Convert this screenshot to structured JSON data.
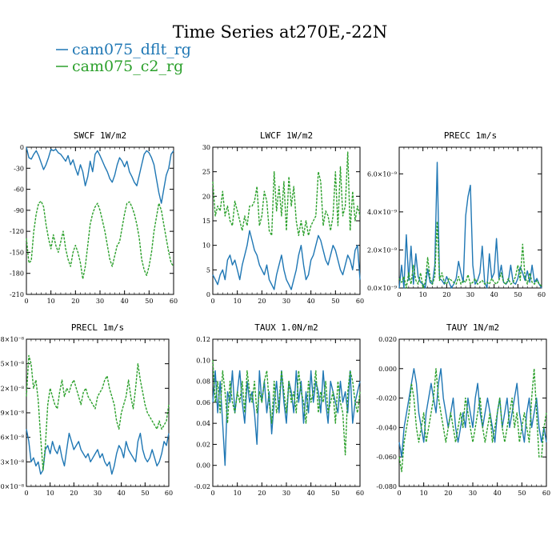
{
  "figure": {
    "title": "Time Series at270E,-22N",
    "legend": [
      {
        "name": "cam075_dflt_rg",
        "color": "#1f77b4"
      },
      {
        "name": "cam075_c2_rg",
        "color": "#2ca02c"
      }
    ]
  },
  "chart_data": [
    {
      "type": "line",
      "title": "SWCF   1W/m2",
      "xlim": [
        0,
        60
      ],
      "ylim": [
        -210,
        0
      ],
      "xticks": [
        "0",
        "10",
        "20",
        "30",
        "40",
        "50",
        "60"
      ],
      "yticks": [
        "0",
        "-30",
        "-60",
        "-90",
        "-120",
        "-150",
        "-180",
        "-210"
      ],
      "series": [
        {
          "name": "cam075_dflt_rg",
          "color": "#1f77b4",
          "dashed": false,
          "values": [
            0,
            -15,
            -17,
            -10,
            -5,
            -12,
            -22,
            -32,
            -25,
            -15,
            -3,
            -5,
            -3,
            -8,
            -10,
            -15,
            -20,
            -12,
            -25,
            -18,
            -30,
            -40,
            -25,
            -35,
            -55,
            -42,
            -20,
            -35,
            -10,
            -5,
            -12,
            -20,
            -28,
            -35,
            -45,
            -50,
            -40,
            -25,
            -15,
            -20,
            -28,
            -20,
            -35,
            -42,
            -50,
            -55,
            -40,
            -25,
            -10,
            -5,
            -8,
            -15,
            -25,
            -45,
            -65,
            -80,
            -60,
            -40,
            -30,
            -10,
            -5
          ]
        },
        {
          "name": "cam075_c2_rg",
          "color": "#2ca02c",
          "dashed": true,
          "values": [
            -130,
            -165,
            -162,
            -120,
            -95,
            -80,
            -77,
            -85,
            -110,
            -130,
            -145,
            -125,
            -140,
            -150,
            -135,
            -120,
            -145,
            -160,
            -170,
            -150,
            -140,
            -150,
            -165,
            -188,
            -170,
            -140,
            -110,
            -95,
            -85,
            -80,
            -90,
            -105,
            -120,
            -140,
            -160,
            -170,
            -155,
            -140,
            -135,
            -115,
            -95,
            -80,
            -78,
            -85,
            -95,
            -110,
            -130,
            -160,
            -175,
            -183,
            -170,
            -150,
            -120,
            -100,
            -80,
            -90,
            -110,
            -130,
            -150,
            -165,
            -170
          ]
        }
      ]
    },
    {
      "type": "line",
      "title": "LWCF   1W/m2",
      "xlim": [
        0,
        60
      ],
      "ylim": [
        0,
        30
      ],
      "xticks": [
        "0",
        "10",
        "20",
        "30",
        "40",
        "50",
        "60"
      ],
      "yticks": [
        "0",
        "5",
        "10",
        "15",
        "20",
        "25",
        "30"
      ],
      "series": [
        {
          "name": "cam075_dflt_rg",
          "color": "#1f77b4",
          "dashed": false,
          "values": [
            4,
            3,
            2,
            4,
            5,
            3,
            7,
            8,
            6,
            7,
            5,
            3,
            6,
            8,
            10,
            13,
            11,
            9,
            8,
            6,
            5,
            4,
            6,
            3,
            2,
            1,
            4,
            6,
            8,
            5,
            3,
            2,
            1,
            3,
            5,
            8,
            10,
            6,
            3,
            4,
            7,
            8,
            10,
            12,
            11,
            9,
            7,
            6,
            8,
            10,
            9,
            7,
            5,
            4,
            6,
            8,
            7,
            5,
            9,
            10,
            3
          ]
        },
        {
          "name": "cam075_c2_rg",
          "color": "#2ca02c",
          "dashed": true,
          "values": [
            23,
            16,
            18,
            17,
            21,
            16,
            18,
            15,
            14,
            19,
            17,
            15,
            13,
            16,
            14,
            18,
            18,
            19,
            22,
            14,
            16,
            21,
            19,
            13,
            12,
            25,
            17,
            22,
            16,
            23,
            13,
            24,
            18,
            22,
            15,
            12,
            15,
            12,
            15,
            12,
            14,
            15,
            16,
            25,
            23,
            14,
            17,
            16,
            13,
            16,
            25,
            14,
            26,
            16,
            18,
            29,
            13,
            21,
            15,
            18,
            16
          ]
        }
      ]
    },
    {
      "type": "line",
      "title": "PRECC  1m/s",
      "xlim": [
        0,
        60
      ],
      "ylim": [
        0,
        7.4e-09
      ],
      "xticks": [
        "0",
        "10",
        "20",
        "30",
        "40",
        "50",
        "60"
      ],
      "yticks": [
        "0.0×10⁻⁹",
        "2.0×10⁻⁹",
        "4.0×10⁻⁹",
        "6.0×10⁻⁹"
      ],
      "series": [
        {
          "name": "cam075_dflt_rg",
          "color": "#1f77b4",
          "dashed": false,
          "values": [
            0,
            1.2e-09,
            0,
            2.8e-09,
            4e-10,
            2.2e-09,
            2e-10,
            1.8e-09,
            6e-10,
            3e-10,
            2e-10,
            0,
            1e-09,
            3e-10,
            2e-10,
            1.2e-09,
            6.6e-09,
            5e-10,
            4e-10,
            2e-10,
            6e-10,
            3e-10,
            0,
            2e-10,
            5e-10,
            1.4e-09,
            8e-10,
            3e-10,
            3.8e-09,
            4.8e-09,
            5.4e-09,
            1.2e-09,
            2e-10,
            4e-10,
            8e-10,
            2.2e-09,
            3e-10,
            0,
            1.8e-09,
            5e-10,
            8e-10,
            2.6e-09,
            5e-10,
            1.2e-09,
            3e-10,
            2e-10,
            4e-10,
            1.2e-09,
            3e-10,
            2e-10,
            5e-10,
            1.1e-09,
            8e-10,
            4e-10,
            9e-10,
            3e-10,
            1.2e-09,
            3e-10,
            5e-10,
            2e-10,
            0
          ]
        },
        {
          "name": "cam075_c2_rg",
          "color": "#2ca02c",
          "dashed": true,
          "values": [
            5e-10,
            3e-10,
            6e-10,
            0,
            8e-10,
            2e-10,
            1.2e-09,
            4e-10,
            2e-10,
            8e-10,
            0,
            3e-10,
            1.6e-09,
            5e-10,
            2e-10,
            6e-10,
            3.5e-09,
            4e-10,
            8e-10,
            3e-10,
            2e-10,
            5e-10,
            4e-10,
            3e-10,
            2e-10,
            6e-10,
            2e-10,
            4e-10,
            3e-10,
            7e-10,
            2e-10,
            3e-10,
            5e-10,
            2e-10,
            3e-10,
            4e-10,
            2e-10,
            3e-10,
            2e-10,
            5e-10,
            3e-10,
            2e-10,
            4e-10,
            8e-10,
            3e-10,
            2e-10,
            5e-10,
            2e-10,
            3e-10,
            6e-10,
            1.2e-09,
            4e-10,
            2.3e-09,
            6e-10,
            2e-10,
            8e-10,
            3e-10,
            2e-10,
            4e-10,
            2e-10,
            1e-10
          ]
        }
      ]
    },
    {
      "type": "line",
      "title": "PRECL   1m/s",
      "xlim": [
        0,
        60
      ],
      "ylim": [
        0,
        1.8e-08
      ],
      "xticks": [
        "0",
        "10",
        "20",
        "30",
        "40",
        "50",
        "60"
      ],
      "yticks": [
        ".0×10⁻⁸",
        ".3×10⁻⁸",
        ".6×10⁻⁸",
        ".9×10⁻⁸",
        ".2×10⁻⁸",
        ".5×10⁻⁸",
        ".8×10⁻⁸"
      ],
      "series": [
        {
          "name": "cam075_dflt_rg",
          "color": "#1f77b4",
          "dashed": false,
          "values": [
            7e-09,
            5.5e-09,
            3e-09,
            3.5e-09,
            2.5e-09,
            3e-09,
            1.5e-09,
            2e-09,
            4.5e-09,
            5e-09,
            4e-09,
            5.5e-09,
            4.5e-09,
            4e-09,
            5e-09,
            3.5e-09,
            2.5e-09,
            4.5e-09,
            6.5e-09,
            5.5e-09,
            4.5e-09,
            5e-09,
            5.5e-09,
            4.5e-09,
            4e-09,
            3.5e-09,
            4e-09,
            3e-09,
            3.5e-09,
            4e-09,
            4.5e-09,
            3.5e-09,
            4e-09,
            3e-09,
            2.5e-09,
            3e-09,
            1.5e-09,
            2.5e-09,
            4e-09,
            5e-09,
            4.5e-09,
            3.5e-09,
            5.5e-09,
            4.5e-09,
            4e-09,
            3.5e-09,
            3e-09,
            5.5e-09,
            6.5e-09,
            4.5e-09,
            3.5e-09,
            3e-09,
            3.5e-09,
            4.5e-09,
            3.5e-09,
            2.5e-09,
            3e-09,
            4e-09,
            5.5e-09,
            5e-09,
            6.5e-09
          ]
        },
        {
          "name": "cam075_c2_rg",
          "color": "#2ca02c",
          "dashed": true,
          "values": [
            1.1e-08,
            1.6e-08,
            1.5e-08,
            1.2e-08,
            1.3e-08,
            1.05e-08,
            6e-09,
            2e-09,
            5e-09,
            1e-08,
            1.2e-08,
            1.1e-08,
            1e-08,
            9.5e-09,
            1.15e-08,
            1.3e-08,
            1.1e-08,
            1.2e-08,
            1.15e-08,
            1.25e-08,
            1.3e-08,
            1.2e-08,
            1.1e-08,
            1e-08,
            1.15e-08,
            1.2e-08,
            1.1e-08,
            1.05e-08,
            1e-08,
            9.5e-09,
            1.1e-08,
            1.15e-08,
            1.2e-08,
            1.3e-08,
            1.35e-08,
            1.2e-08,
            1.1e-08,
            1e-08,
            8e-09,
            7e-09,
            9e-09,
            1e-08,
            1.1e-08,
            1.3e-08,
            1.1e-08,
            9.5e-09,
            1.2e-08,
            1.5e-08,
            1.3e-08,
            1.15e-08,
            1e-08,
            9e-09,
            8.5e-09,
            8e-09,
            7.5e-09,
            7e-09,
            8e-09,
            7e-09,
            7.5e-09,
            8e-09,
            1e-08
          ]
        }
      ]
    },
    {
      "type": "line",
      "title": "TAUX  1.0N/m2",
      "xlim": [
        0,
        60
      ],
      "ylim": [
        -0.02,
        0.12
      ],
      "xticks": [
        "0",
        "10",
        "20",
        "30",
        "40",
        "50",
        "60"
      ],
      "yticks": [
        "-0.02",
        "0.00",
        "0.02",
        "0.04",
        "0.06",
        "0.08",
        "0.10",
        "0.12"
      ],
      "series": [
        {
          "name": "cam075_dflt_rg",
          "color": "#1f77b4",
          "dashed": false,
          "values": [
            0.06,
            0.09,
            0.05,
            0.08,
            0.04,
            0.0,
            0.07,
            0.06,
            0.09,
            0.05,
            0.07,
            0.09,
            0.06,
            0.04,
            0.08,
            0.06,
            0.07,
            0.05,
            0.02,
            0.09,
            0.06,
            0.08,
            0.05,
            0.07,
            0.03,
            0.06,
            0.08,
            0.05,
            0.09,
            0.06,
            0.04,
            0.08,
            0.07,
            0.05,
            0.09,
            0.06,
            0.08,
            0.04,
            0.07,
            0.05,
            0.09,
            0.06,
            0.08,
            0.07,
            0.05,
            0.09,
            0.06,
            0.04,
            0.08,
            0.07,
            0.06,
            0.05,
            0.08,
            0.06,
            0.07,
            0.05,
            0.09,
            0.04,
            0.06,
            0.07,
            0.08
          ]
        },
        {
          "name": "cam075_c2_rg",
          "color": "#2ca02c",
          "dashed": true,
          "values": [
            0.1,
            0.06,
            0.08,
            0.05,
            0.09,
            0.07,
            0.04,
            0.08,
            0.06,
            0.05,
            0.07,
            0.06,
            0.08,
            0.05,
            0.09,
            0.07,
            0.06,
            0.08,
            0.05,
            0.07,
            0.06,
            0.08,
            0.09,
            0.06,
            0.04,
            0.08,
            0.05,
            0.06,
            0.09,
            0.07,
            0.05,
            0.08,
            0.06,
            0.07,
            0.05,
            0.09,
            0.07,
            0.06,
            0.04,
            0.08,
            0.06,
            0.07,
            0.09,
            0.05,
            0.07,
            0.06,
            0.08,
            0.05,
            0.06,
            0.07,
            0.04,
            0.08,
            0.06,
            0.05,
            0.01,
            0.07,
            0.09,
            0.08,
            0.06,
            0.05,
            0.07
          ]
        }
      ]
    },
    {
      "type": "line",
      "title": "TAUY   1N/m2",
      "xlim": [
        0,
        60
      ],
      "ylim": [
        -0.08,
        0.02
      ],
      "xticks": [
        "0",
        "10",
        "20",
        "30",
        "40",
        "50",
        "60"
      ],
      "yticks": [
        "-0.080",
        "-0.060",
        "-0.040",
        "-0.020",
        "0.000",
        "0.020"
      ],
      "series": [
        {
          "name": "cam075_dflt_rg",
          "color": "#1f77b4",
          "dashed": false,
          "values": [
            -0.05,
            -0.06,
            -0.04,
            -0.03,
            -0.02,
            -0.01,
            0.0,
            -0.01,
            -0.03,
            -0.04,
            -0.05,
            -0.03,
            -0.02,
            -0.01,
            -0.02,
            -0.03,
            -0.01,
            0.0,
            -0.02,
            -0.03,
            -0.04,
            -0.03,
            -0.02,
            -0.04,
            -0.05,
            -0.04,
            -0.03,
            -0.04,
            -0.02,
            -0.03,
            -0.04,
            -0.02,
            -0.01,
            -0.03,
            -0.04,
            -0.03,
            -0.02,
            -0.03,
            -0.04,
            -0.05,
            -0.03,
            -0.02,
            -0.04,
            -0.03,
            -0.02,
            -0.04,
            -0.03,
            -0.02,
            -0.01,
            -0.03,
            -0.04,
            -0.05,
            -0.03,
            -0.02,
            -0.04,
            -0.03,
            -0.02,
            -0.04,
            -0.05,
            -0.04,
            -0.05
          ]
        },
        {
          "name": "cam075_c2_rg",
          "color": "#2ca02c",
          "dashed": true,
          "values": [
            -0.06,
            -0.07,
            -0.05,
            -0.04,
            -0.03,
            -0.01,
            -0.02,
            -0.04,
            -0.05,
            -0.04,
            -0.03,
            -0.05,
            -0.04,
            -0.03,
            -0.02,
            0.0,
            -0.02,
            -0.03,
            -0.04,
            -0.05,
            -0.04,
            -0.03,
            -0.04,
            -0.05,
            -0.04,
            -0.03,
            -0.04,
            -0.02,
            -0.03,
            -0.04,
            -0.05,
            -0.04,
            -0.03,
            -0.02,
            -0.04,
            -0.05,
            -0.04,
            -0.03,
            -0.05,
            -0.04,
            -0.03,
            -0.02,
            -0.04,
            -0.05,
            -0.04,
            -0.03,
            -0.02,
            -0.04,
            -0.03,
            -0.05,
            -0.04,
            -0.03,
            -0.04,
            -0.05,
            -0.02,
            0.0,
            -0.03,
            -0.06,
            -0.06,
            -0.04,
            -0.03
          ]
        }
      ]
    }
  ]
}
